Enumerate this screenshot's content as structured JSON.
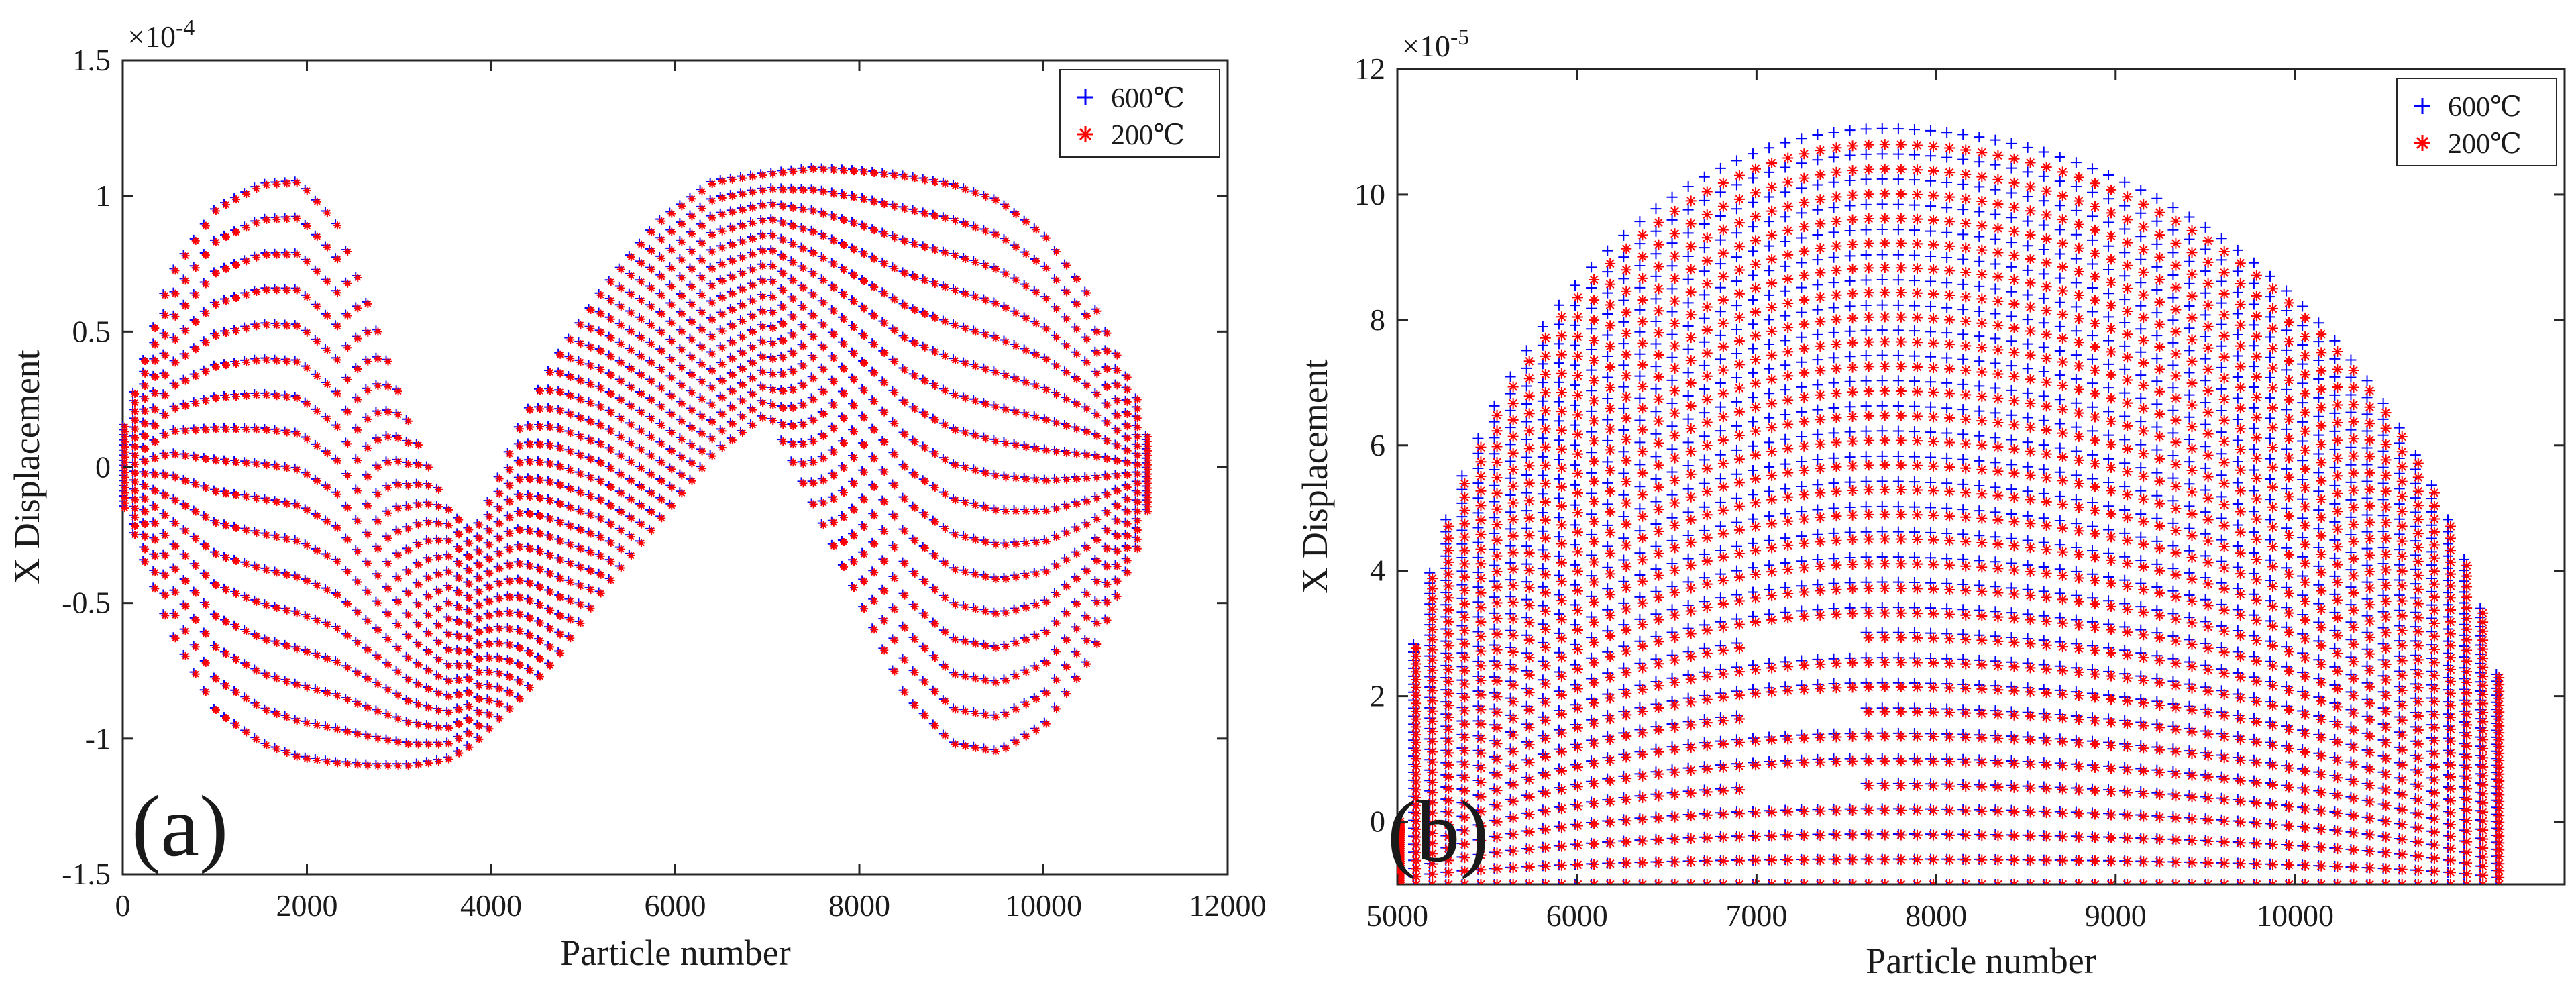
{
  "chart_data": [
    {
      "type": "scatter",
      "panel_label": "(a)",
      "xlabel": "Particle number",
      "ylabel": "X Displacement",
      "y_exponent": "×10",
      "y_exponent_power": "-4",
      "xlim": [
        0,
        12000
      ],
      "ylim": [
        -1.5,
        1.5
      ],
      "x_ticks": [
        0,
        2000,
        4000,
        6000,
        8000,
        10000,
        12000
      ],
      "y_ticks": [
        -1.5,
        -1,
        -0.5,
        0,
        0.5,
        1,
        1.5
      ],
      "x_tick_labels": [
        "0",
        "2000",
        "4000",
        "6000",
        "8000",
        "10000",
        "12000"
      ],
      "y_tick_labels": [
        "-1.5",
        "-1",
        "-0.5",
        "0",
        "0.5",
        "1",
        "1.5"
      ],
      "grid": false,
      "legend_position": "top-right",
      "series": [
        {
          "name": "600℃",
          "marker": "+",
          "color": "#0000ff"
        },
        {
          "name": "200℃",
          "marker": "*",
          "color": "#ff0000"
        }
      ],
      "envelope": {
        "x": [
          0,
          500,
          1000,
          1500,
          1900,
          2300,
          2700,
          3100,
          3500,
          3800,
          4000,
          4300,
          4700,
          5200,
          5800,
          6400,
          7000,
          7500,
          8000,
          8500,
          9000,
          9500,
          10000,
          10500,
          11000,
          11200
        ],
        "upper": [
          0.15,
          0.7,
          0.95,
          1.04,
          1.05,
          0.9,
          0.55,
          0.15,
          -0.15,
          -0.25,
          -0.1,
          0.15,
          0.4,
          0.65,
          0.9,
          1.05,
          1.08,
          1.1,
          1.09,
          1.07,
          1.04,
          0.98,
          0.85,
          0.62,
          0.25,
          0.0
        ],
        "lower": [
          -0.15,
          -0.6,
          -0.9,
          -1.02,
          -1.07,
          -1.09,
          -1.1,
          -1.1,
          -1.08,
          -1.02,
          -0.95,
          -0.85,
          -0.7,
          -0.45,
          -0.2,
          0.05,
          0.2,
          -0.15,
          -0.5,
          -0.85,
          -1.02,
          -1.05,
          -0.95,
          -0.7,
          -0.3,
          -0.05
        ]
      }
    },
    {
      "type": "scatter",
      "panel_label": "(b)",
      "xlabel": "Particle number",
      "ylabel": "X Displacement",
      "y_exponent": "×10",
      "y_exponent_power": "-5",
      "xlim": [
        5000,
        11500
      ],
      "ylim": [
        -1,
        12
      ],
      "x_ticks": [
        5000,
        6000,
        7000,
        8000,
        9000,
        10000
      ],
      "y_ticks": [
        0,
        2,
        4,
        6,
        8,
        10,
        12
      ],
      "x_tick_labels": [
        "5000",
        "6000",
        "7000",
        "8000",
        "9000",
        "10000"
      ],
      "y_tick_labels": [
        "0",
        "2",
        "4",
        "6",
        "8",
        "10",
        "12"
      ],
      "grid": false,
      "legend_position": "top-right",
      "series": [
        {
          "name": "600℃",
          "marker": "+",
          "color": "#0000ff"
        },
        {
          "name": "200℃",
          "marker": "*",
          "color": "#ff0000"
        }
      ],
      "dome": {
        "start": 5000,
        "end": 11200,
        "peak_x": 7700,
        "peak_600": 11.05,
        "peak_200": 10.8,
        "crack_x": 7250
      }
    }
  ]
}
